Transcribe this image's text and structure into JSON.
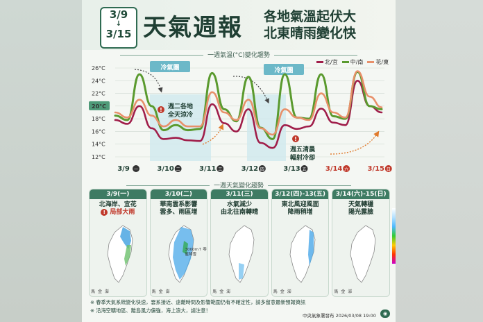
{
  "header": {
    "date_start": "3/9",
    "date_sep": "↓",
    "date_end": "3/15",
    "title": "天氣週報",
    "subtitle_line1": "各地氣溫起伏大",
    "subtitle_line2": "北東晴雨變化快"
  },
  "chart_section_title": "一週氣溫(°C)變化趨勢",
  "legend": [
    {
      "label": "北/宜",
      "color": "#a01e4a"
    },
    {
      "label": "中/南",
      "color": "#5a9a2e"
    },
    {
      "label": "花/東",
      "color": "#e8906a"
    }
  ],
  "chart_annotations": {
    "cold_mass_1": "冷氣團",
    "cold_mass_2": "冷氣團",
    "note_tue_1": "週二各地",
    "note_tue_2": "全天涼冷",
    "note_fri_1": "週五清晨",
    "note_fri_2": "輻射冷卻",
    "alert_icon": "!"
  },
  "chart_data": {
    "type": "line",
    "x_labels": [
      "3/9",
      "3/10",
      "3/11",
      "3/12",
      "3/13",
      "3/14",
      "3/15"
    ],
    "day_marks": [
      "一",
      "二",
      "三",
      "四",
      "五",
      "六",
      "日"
    ],
    "y_ticks": [
      "26°C",
      "24°C",
      "22°C",
      "20°C",
      "18°C",
      "16°C",
      "14°C",
      "12°C"
    ],
    "ylim": [
      12,
      26
    ],
    "highlight_tick": "20°C",
    "series": [
      {
        "name": "北/宜",
        "color": "#a01e4a",
        "values": [
          17.8,
          17.2,
          20.0,
          16.5,
          14.8,
          15.0,
          14.6,
          14.5,
          20.3,
          17.3,
          16.0,
          19.5,
          14.2,
          13.4,
          17.0,
          16.4,
          16.8,
          19.6,
          17.4,
          17.0,
          24.0,
          20.0,
          19.0
        ]
      },
      {
        "name": "中/南",
        "color": "#5a9a2e",
        "values": [
          18.5,
          17.8,
          25.0,
          20.0,
          16.2,
          17.0,
          16.2,
          16.4,
          25.2,
          19.5,
          17.6,
          24.6,
          16.6,
          14.8,
          25.0,
          18.2,
          18.0,
          25.0,
          18.4,
          18.0,
          25.4,
          20.0,
          19.5
        ]
      },
      {
        "name": "花/東",
        "color": "#e8906a",
        "values": [
          19.0,
          18.2,
          21.0,
          18.5,
          16.8,
          17.8,
          16.8,
          16.8,
          22.2,
          19.0,
          17.8,
          21.0,
          16.5,
          15.5,
          19.5,
          18.2,
          17.8,
          22.0,
          19.0,
          18.2,
          25.5,
          21.5,
          19.8
        ]
      }
    ]
  },
  "weekly_section_title": "一週天氣變化趨勢",
  "panels": [
    {
      "date": "3/9(一)",
      "line1": "北海岸、宜花",
      "line2": "局部大雨",
      "alert": "!",
      "wx": [
        "馬",
        "金",
        "澎"
      ]
    },
    {
      "date": "3/10(二)",
      "line1": "華南雲系影響",
      "line2": "雲多、雨區增",
      "note": "3000m↑ 零星降雪",
      "wx": [
        "馬",
        "金",
        "澎"
      ]
    },
    {
      "date": "3/11(三)",
      "line1": "水氣減少",
      "line2": "由北往南轉晴",
      "wx": [
        "馬",
        "金",
        "澎"
      ]
    },
    {
      "date": "3/12(四)-13(五)",
      "line1": "東北風迎風面",
      "line2": "降雨稍增",
      "wx": [
        "馬",
        "金",
        "澎"
      ]
    },
    {
      "date": "3/14(六)-15(日)",
      "line1": "天氣轉穩",
      "line2": "陽光露臉",
      "wx": [
        "馬",
        "金",
        "澎"
      ]
    }
  ],
  "footer": {
    "note1": "※ 春季天氣系統變化快速，雲系接近、遠離時間及影響範圍仍有不確定性，請多留意最新預報資訊",
    "note2": "※ 沿海空曠地區、離島風力偏強，海上浪大，請注意！",
    "credit": "中央氣象署發布 2026/03/08 19:00"
  }
}
